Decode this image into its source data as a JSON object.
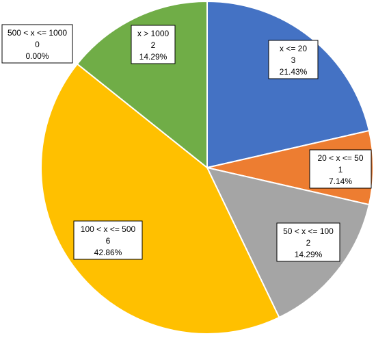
{
  "chart_data": {
    "type": "pie",
    "start_angle_deg": 0,
    "direction": "clockwise",
    "slices": [
      {
        "label": "x <= 20",
        "count": "3",
        "percent": "21.43%",
        "value": 3,
        "color": "#4472C4"
      },
      {
        "label": "20 < x <= 50",
        "count": "1",
        "percent": "7.14%",
        "value": 1,
        "color": "#ED7D31"
      },
      {
        "label": "50 < x <= 100",
        "count": "2",
        "percent": "14.29%",
        "value": 2,
        "color": "#A5A5A5"
      },
      {
        "label": "100 < x <= 500",
        "count": "6",
        "percent": "42.86%",
        "value": 6,
        "color": "#FFC000"
      },
      {
        "label": "500 < x <= 1000",
        "count": "0",
        "percent": "0.00%",
        "value": 0,
        "color": "#5B9BD5"
      },
      {
        "label": "x > 1000",
        "count": "2",
        "percent": "14.29%",
        "value": 2,
        "color": "#70AD47"
      }
    ]
  }
}
